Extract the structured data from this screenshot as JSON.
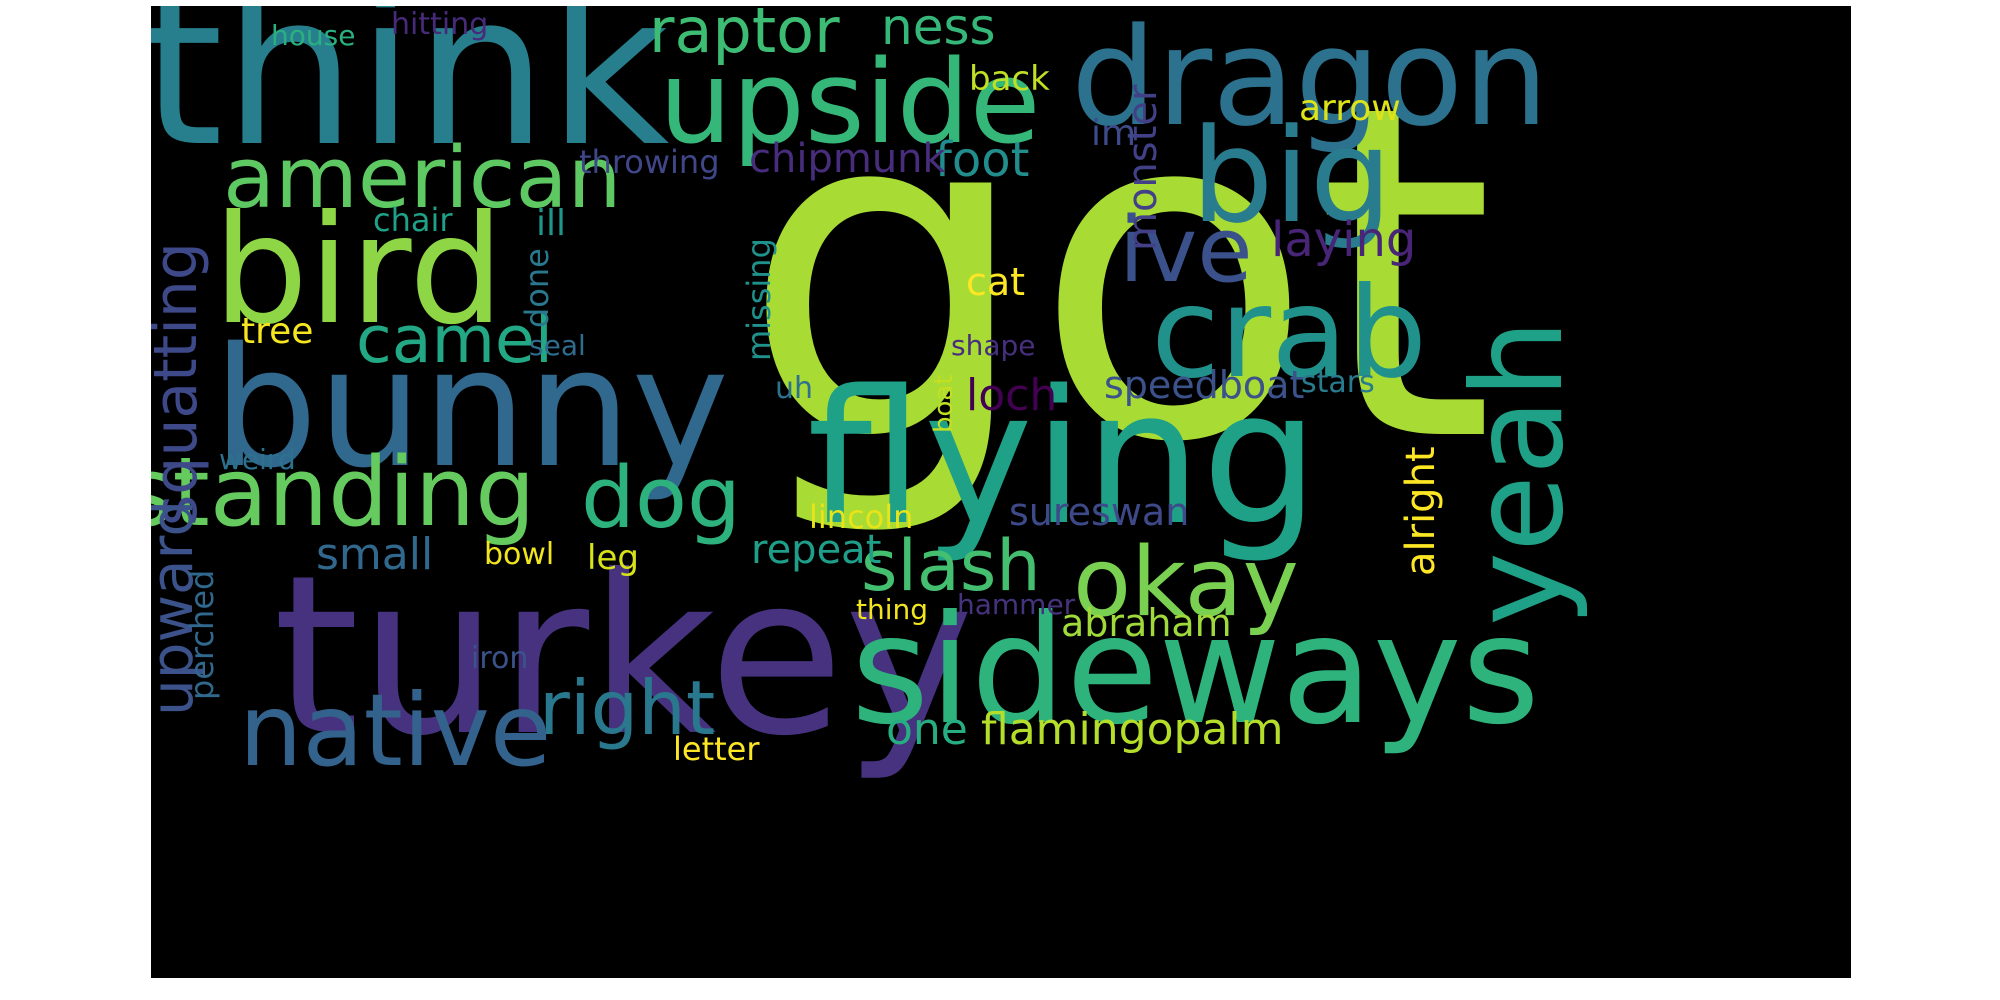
{
  "words": [
    {
      "text": "got",
      "color": "#a8db34"
    },
    {
      "text": "turkey",
      "color": "#46327e"
    },
    {
      "text": "think",
      "color": "#277f8e"
    },
    {
      "text": "flying",
      "color": "#1fa187"
    },
    {
      "text": "sideways",
      "color": "#2eb37c"
    },
    {
      "text": "dragon",
      "color": "#2c728e"
    },
    {
      "text": "bunny",
      "color": "#31688e"
    },
    {
      "text": "bird",
      "color": "#8ed645"
    },
    {
      "text": "upside",
      "color": "#35b779"
    },
    {
      "text": "crab",
      "color": "#21918c"
    },
    {
      "text": "big",
      "color": "#287c8e"
    },
    {
      "text": "yeah",
      "color": "#1fa188"
    },
    {
      "text": "native",
      "color": "#33638d"
    },
    {
      "text": "standing",
      "color": "#65cb5e"
    },
    {
      "text": "american",
      "color": "#5ec962"
    },
    {
      "text": "okay",
      "color": "#7ad151"
    },
    {
      "text": "dog",
      "color": "#2db27d"
    },
    {
      "text": "ive",
      "color": "#3b518b"
    },
    {
      "text": "right",
      "color": "#2a788e"
    },
    {
      "text": "slash",
      "color": "#44bf70"
    },
    {
      "text": "camel",
      "color": "#22a884"
    },
    {
      "text": "raptor",
      "color": "#3dbc74"
    },
    {
      "text": "squatting",
      "color": "#3e4989"
    },
    {
      "text": "upward",
      "color": "#3b528b"
    },
    {
      "text": "ness",
      "color": "#35b779"
    },
    {
      "text": "foot",
      "color": "#228d8d"
    },
    {
      "text": "chipmunk",
      "color": "#472d7b"
    },
    {
      "text": "laying",
      "color": "#482576"
    },
    {
      "text": "monster",
      "color": "#424086"
    },
    {
      "text": "alright",
      "color": "#fde725"
    },
    {
      "text": "flamingopalm",
      "color": "#b5de2b"
    },
    {
      "text": "speedboat",
      "color": "#3b528b"
    },
    {
      "text": "loch",
      "color": "#440154"
    },
    {
      "text": "small",
      "color": "#31688e"
    },
    {
      "text": "sureswan",
      "color": "#3e4989"
    },
    {
      "text": "repeat",
      "color": "#1f9e89"
    },
    {
      "text": "one",
      "color": "#26ad81"
    },
    {
      "text": "abraham",
      "color": "#9fda3a"
    },
    {
      "text": "arrow",
      "color": "#dde318"
    },
    {
      "text": "back",
      "color": "#c0df25"
    },
    {
      "text": "im",
      "color": "#3e4a89"
    },
    {
      "text": "throwing",
      "color": "#3f4788"
    },
    {
      "text": "chair",
      "color": "#1fa187"
    },
    {
      "text": "ill",
      "color": "#1f968b"
    },
    {
      "text": "done",
      "color": "#2a788e"
    },
    {
      "text": "cat",
      "color": "#fde725"
    },
    {
      "text": "tree",
      "color": "#f6e620"
    },
    {
      "text": "missing",
      "color": "#20928c"
    },
    {
      "text": "perched",
      "color": "#31688e"
    },
    {
      "text": "lincoln",
      "color": "#e7e419"
    },
    {
      "text": "leg",
      "color": "#d8e219"
    },
    {
      "text": "bowl",
      "color": "#f1e51d"
    },
    {
      "text": "letter",
      "color": "#fde725"
    },
    {
      "text": "thing",
      "color": "#f1e51d"
    },
    {
      "text": "hitting",
      "color": "#472a7a"
    },
    {
      "text": "house",
      "color": "#2ab07f"
    },
    {
      "text": "seal",
      "color": "#2f6c8e"
    },
    {
      "text": "shape",
      "color": "#472f7d"
    },
    {
      "text": "uh",
      "color": "#2c728e"
    },
    {
      "text": "boat",
      "color": "#c2df23"
    },
    {
      "text": "stars",
      "color": "#287c8e"
    },
    {
      "text": "weird",
      "color": "#2c718e"
    },
    {
      "text": "hammer",
      "color": "#46337e"
    },
    {
      "text": "iron",
      "color": "#3b528b"
    }
  ]
}
